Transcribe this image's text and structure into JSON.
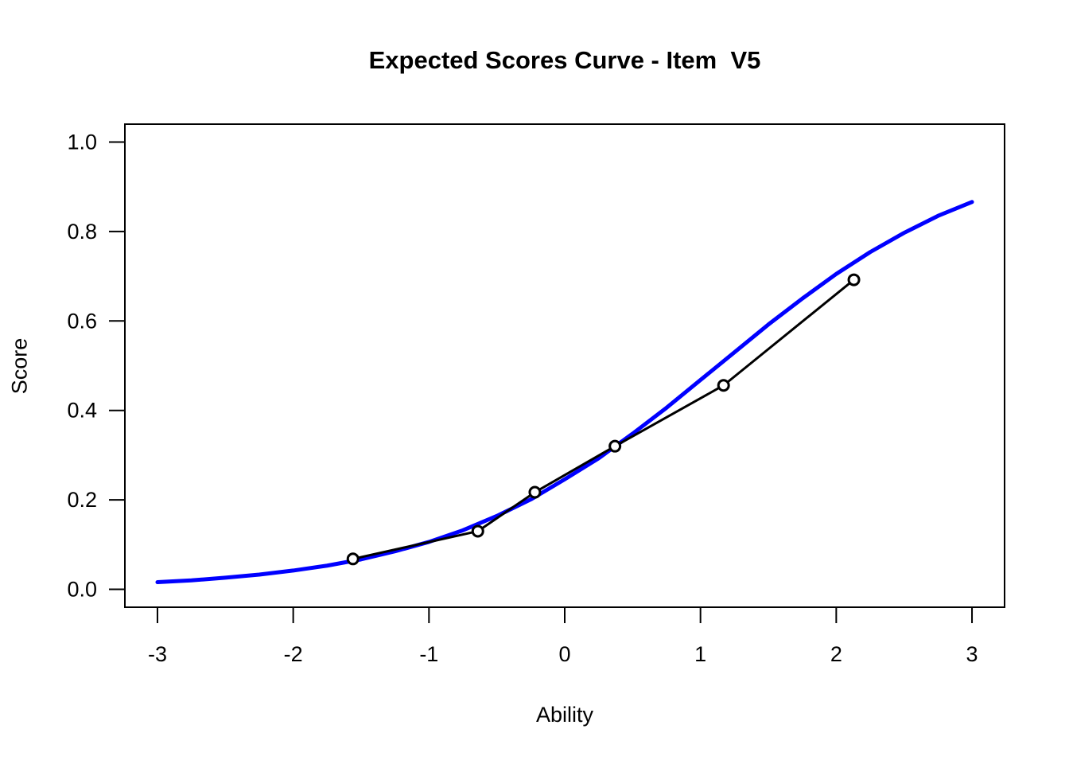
{
  "window": {
    "background_color": "#ffffff",
    "text_color": "#000000"
  },
  "chart_data": {
    "type": "line",
    "title": "Expected Scores Curve - Item  V5",
    "xlabel": "Ability",
    "ylabel": "Score",
    "xlim": [
      -3,
      3
    ],
    "ylim": [
      0,
      1
    ],
    "axis_padding_fraction": 0.04,
    "grid": false,
    "legend": null,
    "x_ticks": [
      -3,
      -2,
      -1,
      0,
      1,
      2,
      3
    ],
    "x_tick_labels": [
      "-3",
      "-2",
      "-1",
      "0",
      "1",
      "2",
      "3"
    ],
    "y_ticks": [
      0,
      0.2,
      0.4,
      0.6,
      0.8,
      1
    ],
    "y_tick_labels": [
      "0.0",
      "0.2",
      "0.4",
      "0.6",
      "0.8",
      "1.0"
    ],
    "series": [
      {
        "name": "model-expected-score-curve",
        "type": "line",
        "color": "#0000ff",
        "line_width": 5,
        "marker": "none",
        "x": [
          -3,
          -2.75,
          -2.5,
          -2.25,
          -2,
          -1.75,
          -1.5,
          -1.25,
          -1,
          -0.75,
          -0.5,
          -0.25,
          0,
          0.25,
          0.5,
          0.75,
          1,
          1.25,
          1.5,
          1.75,
          2,
          2.25,
          2.5,
          2.75,
          3
        ],
        "y": [
          0.016,
          0.02,
          0.026,
          0.033,
          0.042,
          0.053,
          0.067,
          0.085,
          0.106,
          0.132,
          0.164,
          0.201,
          0.246,
          0.293,
          0.348,
          0.406,
          0.468,
          0.53,
          0.592,
          0.65,
          0.705,
          0.754,
          0.797,
          0.835,
          0.866
        ]
      },
      {
        "name": "observed-expected-scores",
        "type": "line",
        "color": "#000000",
        "line_width": 3,
        "marker": "open-circle",
        "marker_radius": 6.5,
        "marker_stroke_width": 3,
        "marker_fill": "#ffffff",
        "x": [
          -1.56,
          -0.64,
          -0.22,
          0.37,
          1.17,
          2.13
        ],
        "y": [
          0.068,
          0.13,
          0.217,
          0.32,
          0.456,
          0.692
        ]
      }
    ]
  }
}
